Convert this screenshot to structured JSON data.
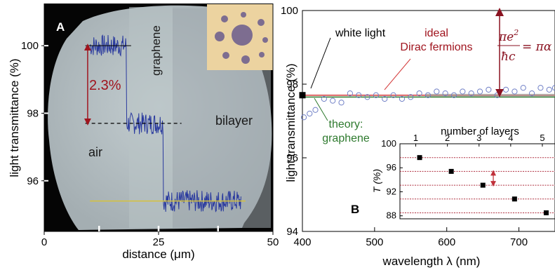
{
  "chart_data": [
    {
      "panel": "A",
      "type": "line",
      "xlabel": "distance (μm)",
      "ylabel": "light  transmittance (%)",
      "xlim": [
        0,
        50
      ],
      "ylim": [
        94.5,
        101
      ],
      "x_ticks": [
        0,
        25,
        50
      ],
      "y_ticks": [
        96,
        98,
        100
      ],
      "annotations": {
        "step": "2.3%",
        "region_air": "air",
        "region_graphene": "graphene",
        "region_bilayer": "bilayer"
      },
      "levels": [
        100.0,
        97.7,
        95.4
      ],
      "steps_at_x": [
        18,
        26
      ],
      "x_range": [
        10,
        43
      ],
      "colors": {
        "trace": "#2a3a9e",
        "annotation": "#a0141e",
        "reference": "#d6c23a",
        "background": "#aeb8bc"
      }
    },
    {
      "panel": "B",
      "type": "scatter",
      "xlabel": "wavelength λ (nm)",
      "ylabel": "light  transmittance (%)",
      "xlim": [
        400,
        750
      ],
      "ylim": [
        94,
        100
      ],
      "x_ticks": [
        400,
        500,
        600,
        700
      ],
      "y_ticks": [
        94,
        96,
        98,
        100
      ],
      "white_light": {
        "x": 400,
        "y": 97.7,
        "label": "white light"
      },
      "ideal_line": {
        "y": 97.7,
        "label_line1": "ideal",
        "label_line2": "Dirac fermions"
      },
      "theory_line": {
        "y": 97.65,
        "label_line1": "theory:",
        "label_line2": "graphene"
      },
      "formula_right": "= πα",
      "x": [
        402,
        410,
        418,
        430,
        442,
        454,
        466,
        478,
        490,
        502,
        514,
        526,
        538,
        550,
        562,
        574,
        586,
        598,
        610,
        622,
        634,
        646,
        658,
        670,
        682,
        694,
        706,
        718,
        730,
        742,
        750
      ],
      "y": [
        97.1,
        97.2,
        97.3,
        97.6,
        97.55,
        97.5,
        97.75,
        97.7,
        97.65,
        97.7,
        97.6,
        97.7,
        97.6,
        97.65,
        97.75,
        97.7,
        97.8,
        97.75,
        97.7,
        97.8,
        97.75,
        97.8,
        97.85,
        97.7,
        97.85,
        97.8,
        97.9,
        97.75,
        97.9,
        97.85,
        97.9
      ],
      "colors": {
        "points": "#6f7fc6",
        "ideal": "#d43a3a",
        "theory": "#2e7a2e",
        "arrow": "#8a1220"
      }
    },
    {
      "panel": "B-inset",
      "type": "scatter",
      "xlabel": "number of layers",
      "ylabel": "T (%)",
      "x_ticks": [
        1,
        2,
        3,
        4,
        5
      ],
      "y_ticks": [
        88,
        92,
        96,
        100
      ],
      "xlim": [
        0.5,
        5.4
      ],
      "ylim": [
        87.5,
        100
      ],
      "x": [
        1,
        2,
        3,
        4,
        5
      ],
      "y": [
        97.7,
        95.4,
        93.1,
        90.8,
        88.5
      ]
    }
  ],
  "labels": {
    "panel_a": "A",
    "panel_b": "B"
  }
}
